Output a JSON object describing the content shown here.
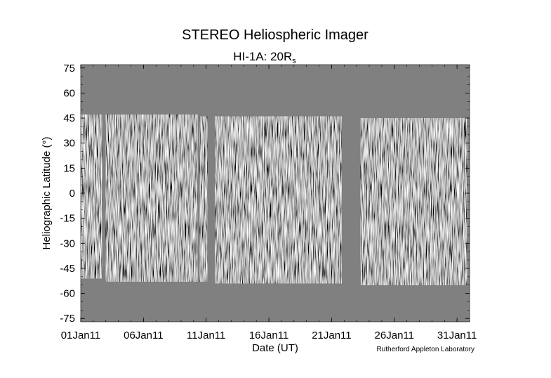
{
  "chart_data": {
    "type": "heatmap",
    "title": "STEREO Heliospheric Imager",
    "subtitle": "HI-1A: 20R",
    "subtitle_subscript": "s",
    "xlabel": "Date (UT)",
    "ylabel": "Heliographic Latitude (°)",
    "credit": "Rutherford Appleton Laboratory",
    "colormap": "grayscale",
    "background_color": "#808080",
    "x_tick_labels": [
      "01Jan11",
      "06Jan11",
      "11Jan11",
      "16Jan11",
      "21Jan11",
      "26Jan11",
      "31Jan11"
    ],
    "x_tick_days": [
      1,
      6,
      11,
      16,
      21,
      26,
      31
    ],
    "xlim_days": [
      1,
      32
    ],
    "ylim": [
      -77,
      77
    ],
    "y_ticks": [
      75,
      60,
      45,
      30,
      15,
      0,
      -15,
      -30,
      -45,
      -60,
      -75
    ],
    "y_tick_labels": [
      "75",
      "60",
      "45",
      "30",
      "15",
      "0",
      "-15",
      "-30",
      "-45",
      "-60",
      "-75"
    ],
    "data_segments": [
      {
        "start_day": 1.0,
        "end_day": 2.7,
        "lat_top": 47,
        "lat_bottom": -51
      },
      {
        "start_day": 3.0,
        "end_day": 10.3,
        "lat_top": 47,
        "lat_bottom": -53
      },
      {
        "start_day": 10.5,
        "end_day": 11.1,
        "lat_top": 46,
        "lat_bottom": -53
      },
      {
        "start_day": 11.7,
        "end_day": 21.8,
        "lat_top": 46,
        "lat_bottom": -54
      },
      {
        "start_day": 23.3,
        "end_day": 31.8,
        "lat_top": 45,
        "lat_bottom": -55
      }
    ]
  }
}
